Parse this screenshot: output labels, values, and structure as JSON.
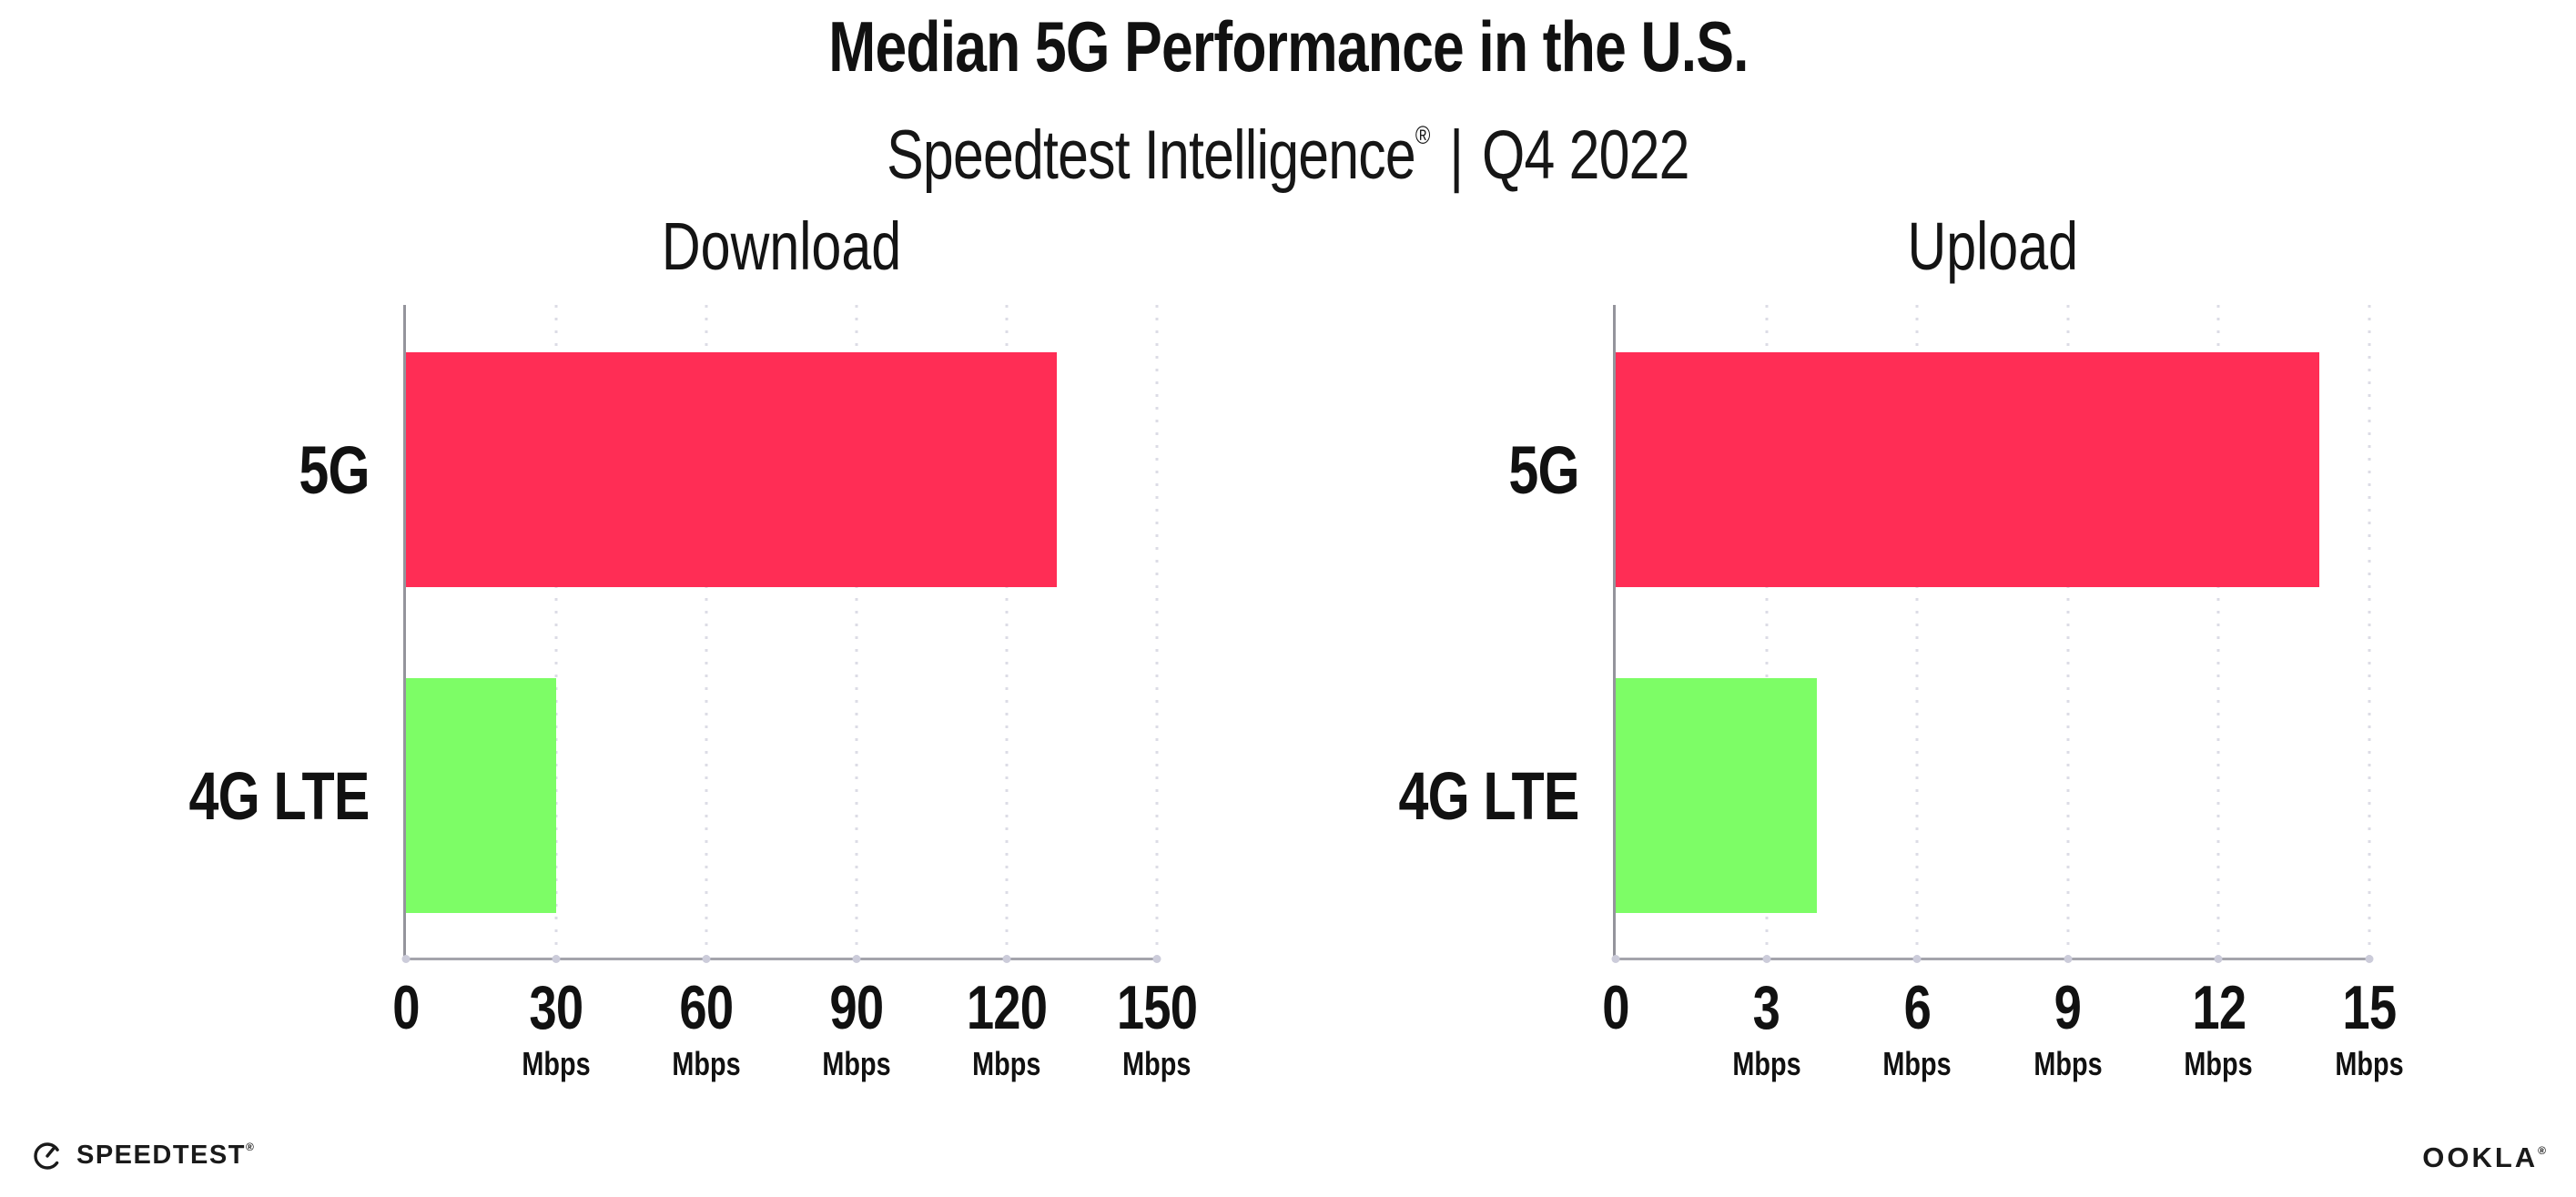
{
  "header": {
    "title": "Median 5G Performance in the U.S.",
    "subtitle": {
      "brand": "Speedtest Intelligence",
      "reg": "®",
      "divider": "|",
      "period": "Q4 2022"
    }
  },
  "colors": {
    "bar_5g": "#FF2D55",
    "bar_4g": "#7DFD66",
    "axis": "#9a9aa2",
    "gridline": "#dcdce6",
    "text": "#111111"
  },
  "chart_data": [
    {
      "type": "bar",
      "orientation": "horizontal",
      "title": "Download",
      "categories": [
        "5G",
        "4G LTE"
      ],
      "values": [
        130,
        30
      ],
      "unit": "Mbps",
      "xlim": [
        0,
        150
      ],
      "xticks": [
        0,
        30,
        60,
        90,
        120,
        150
      ],
      "xtick_units": [
        "",
        "Mbps",
        "Mbps",
        "Mbps",
        "Mbps",
        "Mbps"
      ],
      "bar_colors": [
        "#FF2D55",
        "#7DFD66"
      ],
      "grid": "dotted-vertical",
      "legend": "none"
    },
    {
      "type": "bar",
      "orientation": "horizontal",
      "title": "Upload",
      "categories": [
        "5G",
        "4G LTE"
      ],
      "values": [
        14,
        4
      ],
      "unit": "Mbps",
      "xlim": [
        0,
        15
      ],
      "xticks": [
        0,
        3,
        6,
        9,
        12,
        15
      ],
      "xtick_units": [
        "",
        "Mbps",
        "Mbps",
        "Mbps",
        "Mbps",
        "Mbps"
      ],
      "bar_colors": [
        "#FF2D55",
        "#7DFD66"
      ],
      "grid": "dotted-vertical",
      "legend": "none"
    }
  ],
  "footer": {
    "speedtest_label": "SPEEDTEST",
    "speedtest_mark": "®",
    "ookla_label": "OOKLA",
    "ookla_mark": "®"
  }
}
